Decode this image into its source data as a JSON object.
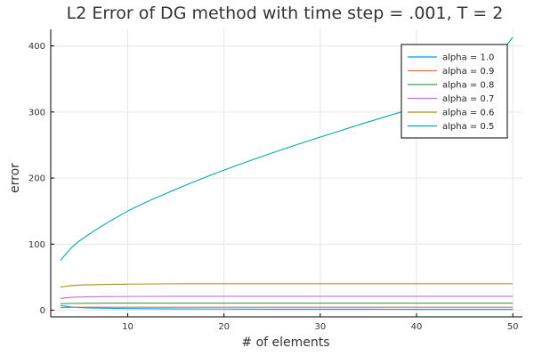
{
  "chart_data": {
    "type": "line",
    "title": "L2 Error of DG method with time step = .001, T = 2",
    "xlabel": "# of elements",
    "ylabel": "error",
    "xlim": [
      2,
      51
    ],
    "ylim": [
      -10,
      425
    ],
    "x_ticks": [
      10,
      20,
      30,
      40,
      50
    ],
    "y_ticks": [
      0,
      100,
      200,
      300,
      400
    ],
    "grid": true,
    "legend_position": "top-right",
    "x": [
      3,
      5,
      10,
      15,
      20,
      25,
      30,
      35,
      40,
      45,
      50
    ],
    "series": [
      {
        "name": "alpha = 1.0",
        "color": "#009AFA",
        "values": [
          7.0,
          4.0,
          2.5,
          2.0,
          1.8,
          1.6,
          1.5,
          1.5,
          1.4,
          1.4,
          1.4
        ]
      },
      {
        "name": "alpha = 0.9",
        "color": "#E36F47",
        "values": [
          4.0,
          4.5,
          4.6,
          4.6,
          4.6,
          4.6,
          4.6,
          4.6,
          4.6,
          4.6,
          4.6
        ]
      },
      {
        "name": "alpha = 0.8",
        "color": "#3EA44E",
        "values": [
          10.0,
          10.5,
          10.8,
          10.8,
          10.8,
          10.8,
          10.8,
          10.8,
          10.8,
          10.8,
          10.8
        ]
      },
      {
        "name": "alpha = 0.7",
        "color": "#C271D2",
        "values": [
          18.0,
          20.0,
          20.8,
          21.0,
          21.0,
          21.0,
          21.0,
          21.0,
          21.0,
          21.0,
          21.0
        ]
      },
      {
        "name": "alpha = 0.6",
        "color": "#AC8D18",
        "values": [
          35.0,
          38.0,
          39.5,
          40.0,
          40.0,
          40.0,
          40.0,
          40.0,
          40.0,
          40.0,
          40.0
        ]
      },
      {
        "name": "alpha = 0.5",
        "color": "#00A9AD",
        "values": [
          75.0,
          105.0,
          150.0,
          183.0,
          212.0,
          238.0,
          262.0,
          285.0,
          307.0,
          328.0,
          413.0
        ]
      }
    ]
  }
}
